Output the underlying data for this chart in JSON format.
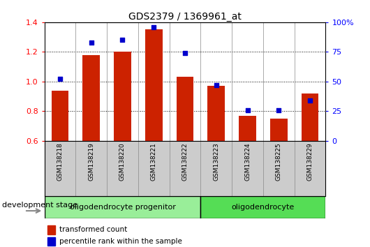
{
  "title": "GDS2379 / 1369961_at",
  "samples": [
    "GSM138218",
    "GSM138219",
    "GSM138220",
    "GSM138221",
    "GSM138222",
    "GSM138223",
    "GSM138224",
    "GSM138225",
    "GSM138229"
  ],
  "red_values": [
    0.94,
    1.18,
    1.2,
    1.35,
    1.03,
    0.97,
    0.77,
    0.75,
    0.92
  ],
  "blue_pct": [
    52,
    83,
    85,
    96,
    74,
    47,
    26,
    26,
    34
  ],
  "ylim_left": [
    0.6,
    1.4
  ],
  "ylim_right": [
    0,
    100
  ],
  "yticks_left": [
    0.6,
    0.8,
    1.0,
    1.2,
    1.4
  ],
  "yticks_right": [
    0,
    25,
    50,
    75,
    100
  ],
  "ytick_labels_right": [
    "0",
    "25",
    "50",
    "75",
    "100%"
  ],
  "group1_label": "oligodendrocyte progenitor",
  "group2_label": "oligodendrocyte",
  "group1_count": 5,
  "group2_count": 4,
  "legend_red": "transformed count",
  "legend_blue": "percentile rank within the sample",
  "stage_label": "development stage",
  "bar_color": "#cc2200",
  "dot_color": "#0000cc",
  "group1_color": "#99ee99",
  "group2_color": "#55dd55",
  "tick_area_color": "#cccccc",
  "bar_bottom": 0.6,
  "bar_width": 0.55
}
